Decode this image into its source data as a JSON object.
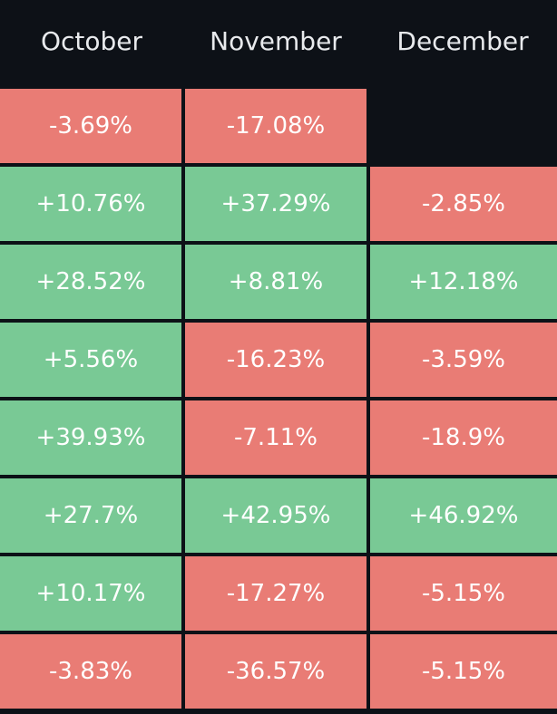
{
  "table": {
    "columns": [
      "October",
      "November",
      "December"
    ],
    "rows": [
      [
        "-3.69%",
        "-17.08%",
        ""
      ],
      [
        "+10.76%",
        "+37.29%",
        "-2.85%"
      ],
      [
        "+28.52%",
        "+8.81%",
        "+12.18%"
      ],
      [
        "+5.56%",
        "-16.23%",
        "-3.59%"
      ],
      [
        "+39.93%",
        "-7.11%",
        "-18.9%"
      ],
      [
        "+27.7%",
        "+42.95%",
        "+46.92%"
      ],
      [
        "+10.17%",
        "-17.27%",
        "-5.15%"
      ],
      [
        "-3.83%",
        "-36.57%",
        "-5.15%"
      ]
    ],
    "colors": {
      "positive": "#79c995",
      "negative": "#e97c75",
      "background": "#0d1117",
      "header_text": "#e8eaed"
    }
  }
}
